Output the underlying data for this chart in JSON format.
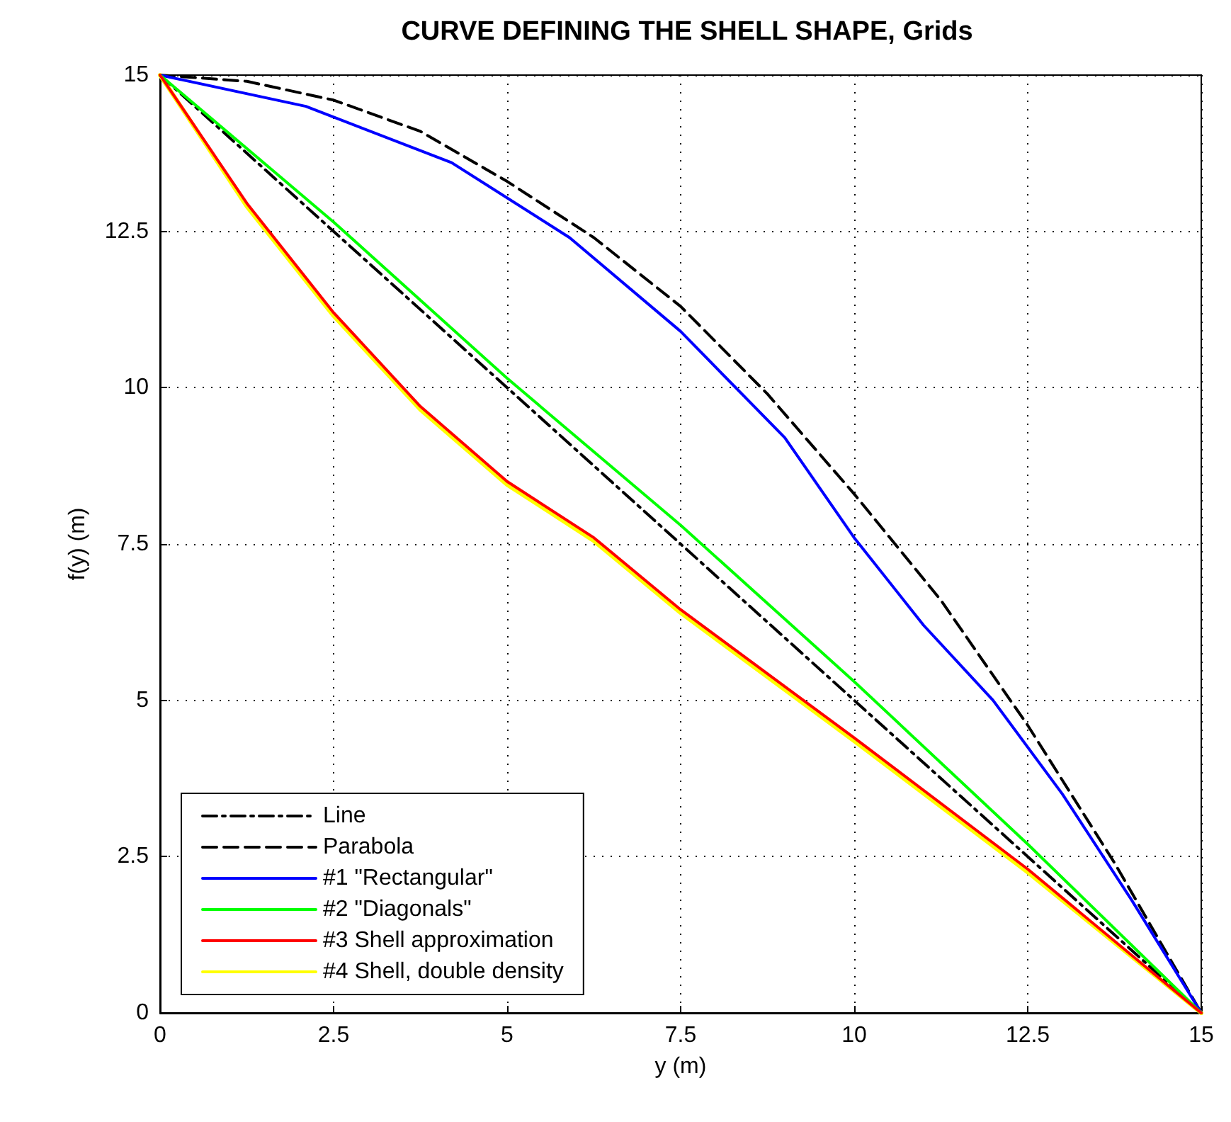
{
  "chart_data": {
    "type": "line",
    "title": "CURVE DEFINING THE SHELL SHAPE, Grids",
    "xlabel": "y (m)",
    "ylabel": "f(y) (m)",
    "xlim": [
      0,
      15
    ],
    "ylim": [
      0,
      15
    ],
    "xticks": [
      0,
      2.5,
      5,
      7.5,
      10,
      12.5,
      15
    ],
    "yticks": [
      0,
      2.5,
      5,
      7.5,
      10,
      12.5,
      15
    ],
    "grid": true,
    "legend": "bottom left",
    "marker": "none",
    "series": [
      {
        "name": "Line",
        "color": "#000000",
        "line_style": "dashdot",
        "x": [
          0,
          15
        ],
        "values": [
          15,
          0
        ]
      },
      {
        "name": "Parabola",
        "color": "#000000",
        "line_style": "dashed",
        "x": [
          0,
          1.25,
          2.5,
          3.75,
          5,
          6.25,
          7.5,
          8.75,
          10,
          11.25,
          12.5,
          13.75,
          15
        ],
        "values": [
          15,
          14.9,
          14.6,
          14.1,
          13.3,
          12.4,
          11.3,
          9.9,
          8.3,
          6.6,
          4.6,
          2.4,
          0
        ]
      },
      {
        "name": "#1 \"Rectangular\"",
        "color": "#0000ff",
        "line_style": "solid",
        "x": [
          0,
          2.1,
          4.2,
          5.9,
          7.5,
          9,
          10,
          11,
          12,
          13,
          14,
          15
        ],
        "values": [
          15,
          14.5,
          13.6,
          12.4,
          10.9,
          9.2,
          7.6,
          6.2,
          5,
          3.5,
          1.8,
          0
        ]
      },
      {
        "name": "#2 \"Diagonals\"",
        "color": "#00ff00",
        "line_style": "solid",
        "x": [
          0,
          2.5,
          5,
          7.5,
          10,
          12.5,
          15
        ],
        "values": [
          15,
          12.65,
          10.15,
          7.8,
          5.3,
          2.7,
          0
        ]
      },
      {
        "name": "#3 Shell approximation",
        "color": "#ff0000",
        "line_style": "solid",
        "x": [
          0,
          1.25,
          2.5,
          3.75,
          5,
          6.25,
          7.5,
          10,
          12.5,
          15
        ],
        "values": [
          15,
          12.95,
          11.2,
          9.7,
          8.5,
          7.6,
          6.45,
          4.4,
          2.3,
          0
        ]
      },
      {
        "name": "#4 Shell, double density",
        "color": "#ffff00",
        "line_style": "solid",
        "x": [
          0,
          1.25,
          2.5,
          3.75,
          5,
          6.25,
          7.5,
          10,
          12.5,
          15
        ],
        "values": [
          15,
          12.9,
          11.15,
          9.65,
          8.45,
          7.55,
          6.4,
          4.35,
          2.25,
          0
        ]
      }
    ]
  }
}
